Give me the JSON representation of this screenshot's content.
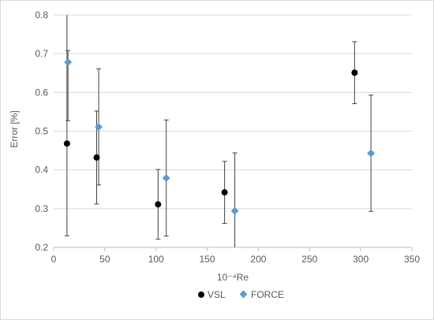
{
  "chart_data": {
    "type": "scatter",
    "title": "",
    "xlabel": "10⁻⁴Re",
    "ylabel": "Error [%]",
    "xlim": [
      0,
      350
    ],
    "ylim": [
      0.2,
      0.8
    ],
    "x_ticks": [
      0,
      50,
      100,
      150,
      200,
      250,
      300,
      350
    ],
    "y_ticks": [
      0.2,
      0.3,
      0.4,
      0.5,
      0.6,
      0.7,
      0.8
    ],
    "x_tick_labels": [
      "0",
      "50",
      "100",
      "150",
      "200",
      "250",
      "300",
      "350"
    ],
    "y_tick_labels": [
      "0.2",
      "0.3",
      "0.4",
      "0.5",
      "0.6",
      "0.7",
      "0.8"
    ],
    "grid": "horizontal",
    "legend_position": "bottom",
    "series": [
      {
        "name": "VSL",
        "marker": "circle",
        "color": "#000000",
        "points": [
          {
            "x": 13,
            "y": 0.468,
            "err_low": 0.23,
            "err_high": 0.8
          },
          {
            "x": 42,
            "y": 0.432,
            "err_low": 0.312,
            "err_high": 0.552
          },
          {
            "x": 102,
            "y": 0.311,
            "err_low": 0.221,
            "err_high": 0.401
          },
          {
            "x": 167,
            "y": 0.342,
            "err_low": 0.262,
            "err_high": 0.422
          },
          {
            "x": 294,
            "y": 0.651,
            "err_low": 0.571,
            "err_high": 0.731
          }
        ]
      },
      {
        "name": "FORCE",
        "marker": "diamond",
        "color": "#5b9bd5",
        "points": [
          {
            "x": 14,
            "y": 0.678,
            "err_low": 0.527,
            "err_high": 0.708
          },
          {
            "x": 44,
            "y": 0.511,
            "err_low": 0.361,
            "err_high": 0.661
          },
          {
            "x": 110,
            "y": 0.379,
            "err_low": 0.229,
            "err_high": 0.529
          },
          {
            "x": 177,
            "y": 0.294,
            "err_low": 0.2,
            "err_high": 0.444
          },
          {
            "x": 310,
            "y": 0.443,
            "err_low": 0.293,
            "err_high": 0.593
          }
        ]
      }
    ]
  }
}
